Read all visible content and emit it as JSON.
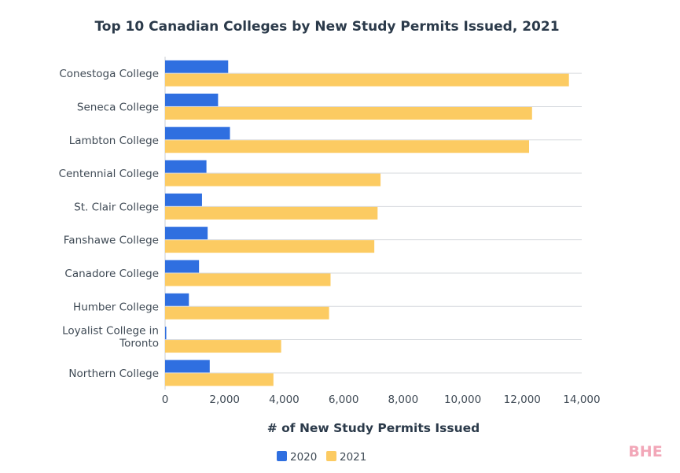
{
  "watermark": "BHE",
  "chart_data": {
    "type": "bar",
    "orientation": "horizontal",
    "title": "Top 10 Canadian Colleges by New Study Permits Issued, 2021",
    "xlabel": "# of New Study Permits Issued",
    "ylabel": "",
    "xlim": [
      0,
      14000
    ],
    "xticks": [
      "0",
      "2,000",
      "4,000",
      "6,000",
      "8,000",
      "10,000",
      "12,000",
      "14,000"
    ],
    "grid": true,
    "legend_position": "bottom",
    "categories": [
      "Conestoga College",
      "Seneca College",
      "Lambton College",
      "Centennial College",
      "St. Clair College",
      "Fanshawe College",
      "Canadore College",
      "Humber College",
      "Loyalist College in Toronto",
      "Northern College"
    ],
    "series": [
      {
        "name": "2020",
        "color": "#2f6fe0",
        "values": [
          2120,
          1780,
          2180,
          1390,
          1240,
          1430,
          1140,
          800,
          40,
          1500
        ]
      },
      {
        "name": "2021",
        "color": "#fccb62",
        "values": [
          13570,
          12330,
          12230,
          7240,
          7140,
          7030,
          5560,
          5510,
          3900,
          3640
        ]
      }
    ]
  }
}
